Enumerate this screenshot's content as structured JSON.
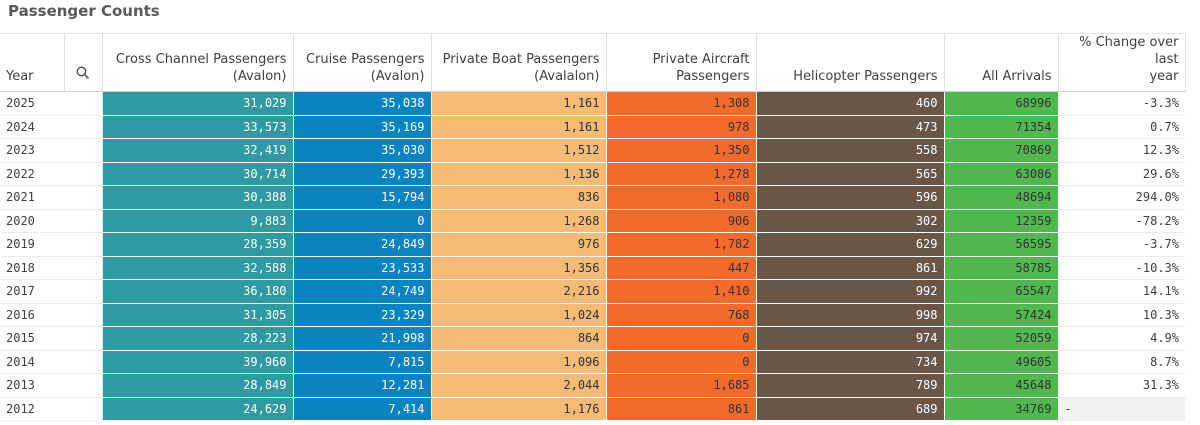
{
  "title": "Passenger Counts",
  "icons": {
    "search": "search-icon"
  },
  "columns": {
    "year": "Year",
    "cross": [
      "Cross Channel Passengers",
      "(Avalon)"
    ],
    "cruise": [
      "Cruise Passengers",
      "(Avalon)"
    ],
    "boat": [
      "Private Boat Passengers",
      "(Avalalon)"
    ],
    "air": [
      "Private Aircraft",
      "Passengers"
    ],
    "heli": "Helicopter Passengers",
    "all": "All Arrivals",
    "pct": [
      "% Change over last",
      "year"
    ]
  },
  "colors": {
    "cross": "#2f9aa1",
    "cruise": "#0a84c1",
    "boat": "#f3bb75",
    "air": "#f26b2b",
    "heli": "#6a5647",
    "all": "#50b84e"
  },
  "chart_data": {
    "type": "table",
    "title": "Passenger Counts",
    "rows": [
      {
        "year": "2025",
        "cross": "31,029",
        "cruise": "35,038",
        "boat": "1,161",
        "air": "1,308",
        "heli": "460",
        "all": "68996",
        "pct": "-3.3%"
      },
      {
        "year": "2024",
        "cross": "33,573",
        "cruise": "35,169",
        "boat": "1,161",
        "air": "978",
        "heli": "473",
        "all": "71354",
        "pct": "0.7%"
      },
      {
        "year": "2023",
        "cross": "32,419",
        "cruise": "35,030",
        "boat": "1,512",
        "air": "1,350",
        "heli": "558",
        "all": "70869",
        "pct": "12.3%"
      },
      {
        "year": "2022",
        "cross": "30,714",
        "cruise": "29,393",
        "boat": "1,136",
        "air": "1,278",
        "heli": "565",
        "all": "63086",
        "pct": "29.6%"
      },
      {
        "year": "2021",
        "cross": "30,388",
        "cruise": "15,794",
        "boat": "836",
        "air": "1,080",
        "heli": "596",
        "all": "48694",
        "pct": "294.0%"
      },
      {
        "year": "2020",
        "cross": "9,883",
        "cruise": "0",
        "boat": "1,268",
        "air": "906",
        "heli": "302",
        "all": "12359",
        "pct": "-78.2%"
      },
      {
        "year": "2019",
        "cross": "28,359",
        "cruise": "24,849",
        "boat": "976",
        "air": "1,782",
        "heli": "629",
        "all": "56595",
        "pct": "-3.7%"
      },
      {
        "year": "2018",
        "cross": "32,588",
        "cruise": "23,533",
        "boat": "1,356",
        "air": "447",
        "heli": "861",
        "all": "58785",
        "pct": "-10.3%"
      },
      {
        "year": "2017",
        "cross": "36,180",
        "cruise": "24,749",
        "boat": "2,216",
        "air": "1,410",
        "heli": "992",
        "all": "65547",
        "pct": "14.1%"
      },
      {
        "year": "2016",
        "cross": "31,305",
        "cruise": "23,329",
        "boat": "1,024",
        "air": "768",
        "heli": "998",
        "all": "57424",
        "pct": "10.3%"
      },
      {
        "year": "2015",
        "cross": "28,223",
        "cruise": "21,998",
        "boat": "864",
        "air": "0",
        "heli": "974",
        "all": "52059",
        "pct": "4.9%"
      },
      {
        "year": "2014",
        "cross": "39,960",
        "cruise": "7,815",
        "boat": "1,096",
        "air": "0",
        "heli": "734",
        "all": "49605",
        "pct": "8.7%"
      },
      {
        "year": "2013",
        "cross": "28,849",
        "cruise": "12,281",
        "boat": "2,044",
        "air": "1,685",
        "heli": "789",
        "all": "45648",
        "pct": "31.3%"
      },
      {
        "year": "2012",
        "cross": "24,629",
        "cruise": "7,414",
        "boat": "1,176",
        "air": "861",
        "heli": "689",
        "all": "34769",
        "pct": "-"
      }
    ]
  }
}
